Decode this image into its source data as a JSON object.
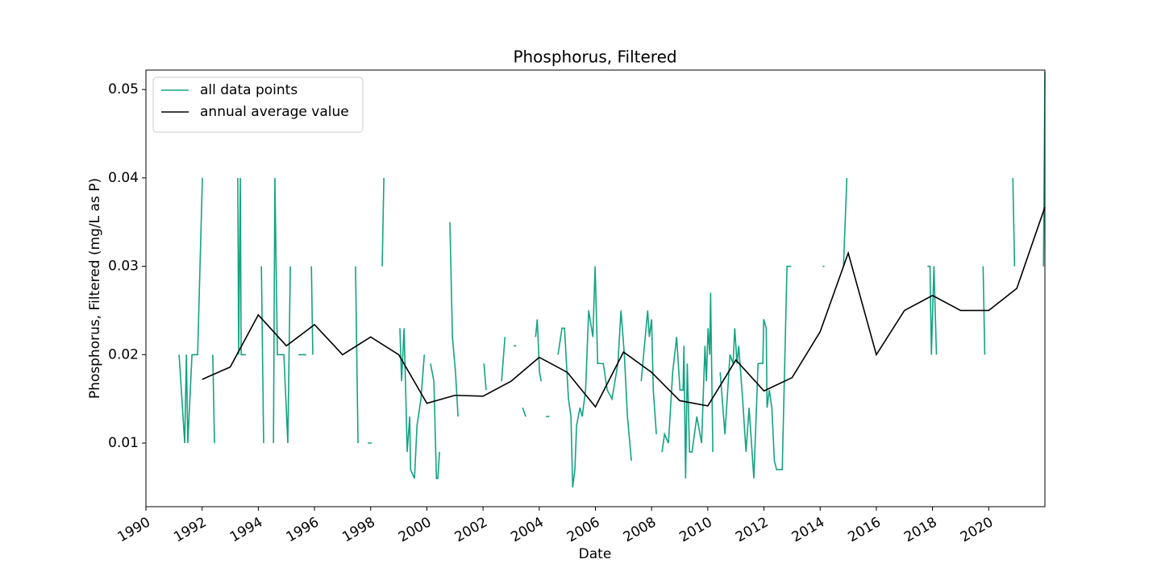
{
  "chart_data": {
    "type": "line",
    "title": "Phosphorus, Filtered",
    "x_label": "Date",
    "y_label": "Phosphorus, Filtered (mg/L as P)",
    "xlim": [
      1990,
      2022
    ],
    "xticks": [
      1990,
      1992,
      1994,
      1996,
      1998,
      2000,
      2002,
      2004,
      2006,
      2008,
      2010,
      2012,
      2014,
      2016,
      2018,
      2020
    ],
    "ylim": [
      0.0028,
      0.0522
    ],
    "yticks": [
      0.01,
      0.02,
      0.03,
      0.04,
      0.05
    ],
    "grid": false,
    "legend": "upper left",
    "series": [
      {
        "name": "all data points",
        "color": "#13a383",
        "x": [
          1991.18,
          1991.38,
          1991.44,
          1991.49,
          1991.64,
          1991.84,
          1992.01,
          null,
          1992.38,
          1992.44,
          null,
          1993.27,
          1993.3,
          1993.36,
          1993.39,
          1993.56,
          null,
          1994.11,
          1994.19,
          null,
          1994.54,
          1994.59,
          1994.68,
          1994.91,
          1995.05,
          1995.14,
          null,
          1995.43,
          1995.71,
          null,
          1995.89,
          1995.94,
          null,
          1997.46,
          1997.55,
          null,
          1997.9,
          1998.04,
          null,
          1998.41,
          1998.47,
          null,
          1999.04,
          1999.1,
          1999.19,
          1999.3,
          1999.39,
          1999.42,
          1999.56,
          1999.65,
          1999.79,
          1999.91,
          null,
          2000.13,
          2000.25,
          2000.34,
          2000.39,
          2000.45,
          null,
          2000.82,
          2000.91,
          2001.02,
          2001.11,
          null,
          2002.03,
          2002.11,
          null,
          2002.66,
          2002.78,
          null,
          2003.09,
          2003.18,
          null,
          2003.41,
          2003.52,
          null,
          2003.87,
          2003.93,
          2004.01,
          2004.07,
          null,
          2004.24,
          2004.36,
          null,
          2004.67,
          2004.81,
          2004.9,
          2005.04,
          2005.13,
          2005.19,
          2005.27,
          2005.33,
          2005.45,
          2005.53,
          2005.65,
          2005.76,
          2005.91,
          2005.99,
          2006.08,
          2006.28,
          2006.42,
          2006.59,
          2006.8,
          2006.91,
          2007.03,
          2007.14,
          2007.28,
          null,
          2007.63,
          2007.86,
          2007.92,
          2008.0,
          2008.06,
          2008.17,
          null,
          2008.37,
          2008.46,
          2008.6,
          2008.75,
          2008.89,
          2009.01,
          2009.12,
          2009.15,
          2009.21,
          2009.27,
          2009.35,
          2009.44,
          2009.61,
          2009.78,
          2009.9,
          2009.95,
          2010.01,
          2010.07,
          2010.1,
          2010.18,
          null,
          2010.44,
          2010.61,
          2010.79,
          2010.9,
          2010.96,
          2011.04,
          2011.1,
          2011.24,
          2011.36,
          2011.47,
          2011.64,
          2011.79,
          2011.96,
          2011.99,
          2012.08,
          2012.11,
          2012.19,
          2012.28,
          2012.37,
          2012.45,
          2012.65,
          2012.82,
          2012.97,
          null,
          2014.09,
          2014.15,
          null,
          2014.83,
          2014.95,
          null,
          2017.82,
          2017.91,
          2017.96,
          2018.05,
          2018.14,
          null,
          2019.8,
          2019.86,
          null,
          2020.86,
          2020.92,
          null,
          2021.95,
          2022.0
        ],
        "values": [
          0.02,
          0.01,
          0.02,
          0.01,
          0.02,
          0.02,
          0.04,
          null,
          0.02,
          0.01,
          null,
          0.04,
          0.02,
          0.04,
          0.02,
          0.02,
          null,
          0.03,
          0.01,
          null,
          0.01,
          0.04,
          0.02,
          0.02,
          0.01,
          0.03,
          null,
          0.02,
          0.02,
          null,
          0.03,
          0.02,
          null,
          0.03,
          0.01,
          null,
          0.01,
          0.01,
          null,
          0.03,
          0.04,
          null,
          0.023,
          0.017,
          0.023,
          0.009,
          0.013,
          0.007,
          0.006,
          0.012,
          0.015,
          0.02,
          null,
          0.019,
          0.017,
          0.006,
          0.006,
          0.009,
          null,
          0.035,
          0.022,
          0.018,
          0.013,
          null,
          0.019,
          0.016,
          null,
          0.017,
          0.022,
          null,
          0.021,
          0.021,
          null,
          0.014,
          0.013,
          null,
          0.022,
          0.024,
          0.018,
          0.017,
          null,
          0.013,
          0.013,
          null,
          0.02,
          0.023,
          0.023,
          0.015,
          0.013,
          0.005,
          0.007,
          0.012,
          0.014,
          0.013,
          0.016,
          0.025,
          0.022,
          0.03,
          0.019,
          0.019,
          0.016,
          0.015,
          0.019,
          0.025,
          0.02,
          0.013,
          0.008,
          null,
          0.017,
          0.025,
          0.022,
          0.024,
          0.016,
          0.011,
          null,
          0.009,
          0.011,
          0.01,
          0.018,
          0.022,
          0.016,
          0.016,
          0.021,
          0.006,
          0.019,
          0.009,
          0.009,
          0.013,
          0.01,
          0.021,
          0.017,
          0.023,
          0.02,
          0.027,
          0.009,
          null,
          0.018,
          0.011,
          0.02,
          0.019,
          0.023,
          0.019,
          0.021,
          0.015,
          0.009,
          0.014,
          0.006,
          0.019,
          0.019,
          0.024,
          0.023,
          0.014,
          0.016,
          0.014,
          0.008,
          0.007,
          0.007,
          0.03,
          0.03,
          null,
          0.03,
          0.03,
          null,
          0.03,
          0.04,
          null,
          0.03,
          0.03,
          0.02,
          0.03,
          0.02,
          null,
          0.03,
          0.02,
          null,
          0.04,
          0.03,
          null,
          0.03,
          0.052
        ]
      },
      {
        "name": "annual average value",
        "color": "#000000",
        "x": [
          1992,
          1993,
          1994,
          1995,
          1996,
          1997,
          1998,
          1999,
          2000,
          2001,
          2002,
          2003,
          2004,
          2005,
          2006,
          2007,
          2008,
          2009,
          2010,
          2011,
          2012,
          2013,
          2014,
          2015,
          2016,
          2017,
          2018,
          2019,
          2020,
          2021,
          2022
        ],
        "values": [
          0.0172,
          0.0186,
          0.0245,
          0.021,
          0.0234,
          0.02,
          0.022,
          0.02,
          0.0145,
          0.0154,
          0.0153,
          0.017,
          0.0197,
          0.018,
          0.0141,
          0.0203,
          0.018,
          0.0148,
          0.0142,
          0.0194,
          0.0159,
          0.0174,
          0.0226,
          0.0315,
          0.02,
          0.025,
          0.0267,
          0.025,
          0.025,
          0.0275,
          0.0367
        ]
      }
    ]
  }
}
